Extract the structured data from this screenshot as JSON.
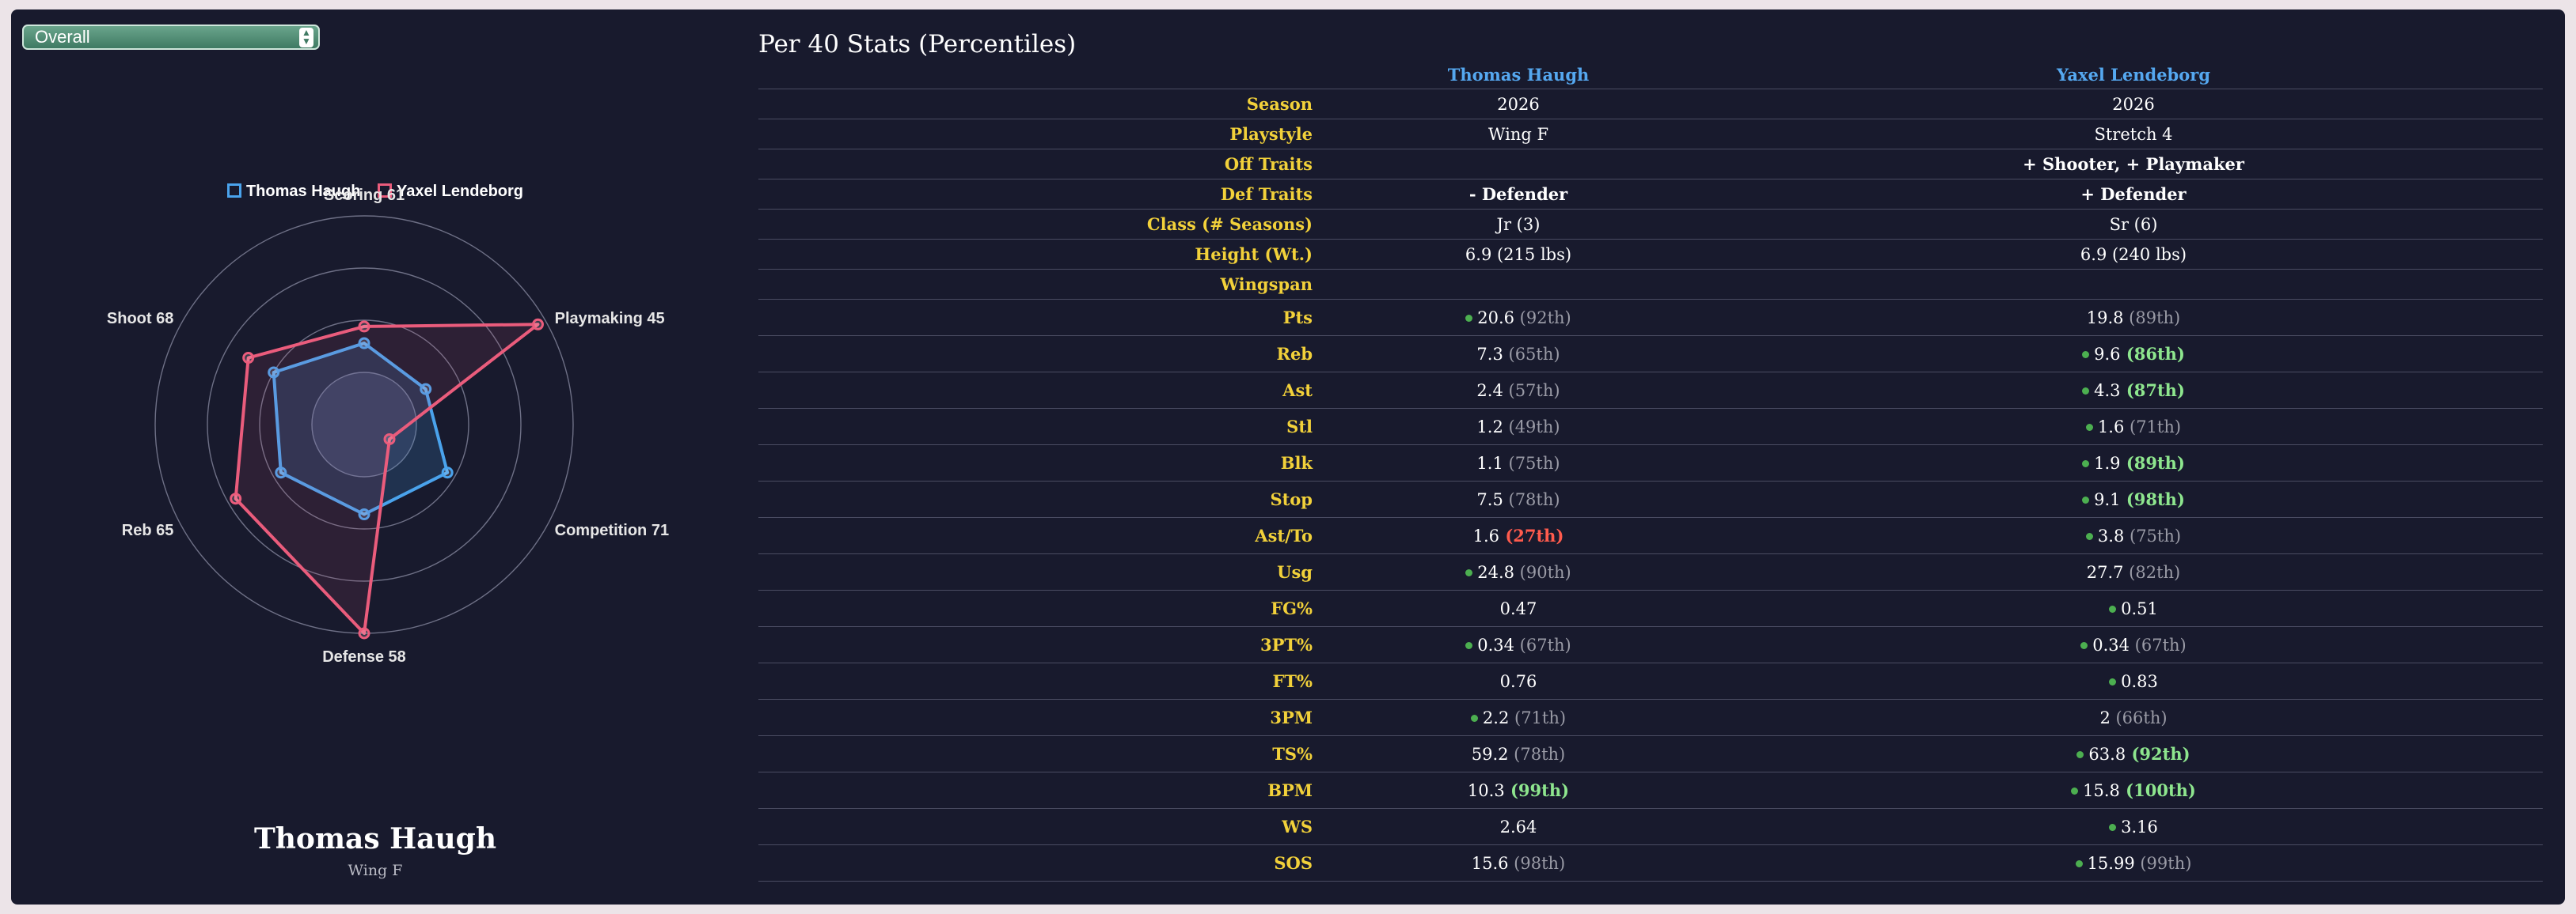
{
  "selector": {
    "value": "Overall"
  },
  "radar": {
    "legend": [
      {
        "name": "Thomas Haugh",
        "color": "#4aa3ec"
      },
      {
        "name": "Yaxel Lendeborg",
        "color": "#ea5c7c"
      }
    ],
    "axes": [
      "Scoring 61",
      "Playmaking 45",
      "Competition 71",
      "Defense 58",
      "Reb 65",
      "Shoot 68"
    ],
    "series": [
      {
        "name": "Thomas Haugh",
        "values": [
          39,
          34,
          46,
          43,
          46,
          50
        ]
      },
      {
        "name": "Yaxel Lendeborg",
        "values": [
          47,
          96,
          14,
          100,
          71,
          64
        ]
      }
    ],
    "max": 100,
    "rings": 4
  },
  "player": {
    "name": "Thomas Haugh",
    "role": "Wing F"
  },
  "stats": {
    "title": "Per 40 Stats (Percentiles)",
    "players": [
      "Thomas Haugh",
      "Yaxel Lendeborg"
    ],
    "info_rows": [
      {
        "label": "Season",
        "p1": "2026",
        "p2": "2026"
      },
      {
        "label": "Playstyle",
        "p1": "Wing F",
        "p2": "Stretch 4"
      },
      {
        "label": "Off Traits",
        "p1": "",
        "p2": "+ Shooter, + Playmaker",
        "p2_type": "good"
      },
      {
        "label": "Def Traits",
        "p1": "- Defender",
        "p1_type": "bad",
        "p2": "+ Defender",
        "p2_type": "good"
      },
      {
        "label": "Class (# Seasons)",
        "p1": "Jr (3)",
        "p2": "Sr (6)"
      },
      {
        "label": "Height (Wt.)",
        "p1": "6.9 (215 lbs)",
        "p2": "6.9 (240 lbs)"
      },
      {
        "label": "Wingspan",
        "p1": "",
        "p2": ""
      }
    ],
    "stat_rows": [
      {
        "label": "Pts",
        "p1": {
          "value": "20.6",
          "pct": "(92th)",
          "dot": true,
          "tier": "normal"
        },
        "p2": {
          "value": "19.8",
          "pct": "(89th)",
          "dot": false,
          "tier": "normal"
        }
      },
      {
        "label": "Reb",
        "p1": {
          "value": "7.3",
          "pct": "(65th)",
          "dot": false,
          "tier": "normal"
        },
        "p2": {
          "value": "9.6",
          "pct": "(86th)",
          "dot": true,
          "tier": "high"
        }
      },
      {
        "label": "Ast",
        "p1": {
          "value": "2.4",
          "pct": "(57th)",
          "dot": false,
          "tier": "normal"
        },
        "p2": {
          "value": "4.3",
          "pct": "(87th)",
          "dot": true,
          "tier": "high"
        }
      },
      {
        "label": "Stl",
        "p1": {
          "value": "1.2",
          "pct": "(49th)",
          "dot": false,
          "tier": "normal"
        },
        "p2": {
          "value": "1.6",
          "pct": "(71th)",
          "dot": true,
          "tier": "normal"
        }
      },
      {
        "label": "Blk",
        "p1": {
          "value": "1.1",
          "pct": "(75th)",
          "dot": false,
          "tier": "normal"
        },
        "p2": {
          "value": "1.9",
          "pct": "(89th)",
          "dot": true,
          "tier": "high"
        }
      },
      {
        "label": "Stop",
        "p1": {
          "value": "7.5",
          "pct": "(78th)",
          "dot": false,
          "tier": "normal"
        },
        "p2": {
          "value": "9.1",
          "pct": "(98th)",
          "dot": true,
          "tier": "high"
        }
      },
      {
        "label": "Ast/To",
        "p1": {
          "value": "1.6",
          "pct": "(27th)",
          "dot": false,
          "tier": "low"
        },
        "p2": {
          "value": "3.8",
          "pct": "(75th)",
          "dot": true,
          "tier": "normal"
        }
      },
      {
        "label": "Usg",
        "p1": {
          "value": "24.8",
          "pct": "(90th)",
          "dot": true,
          "tier": "normal"
        },
        "p2": {
          "value": "27.7",
          "pct": "(82th)",
          "dot": false,
          "tier": "normal"
        }
      },
      {
        "label": "FG%",
        "p1": {
          "value": "0.47",
          "pct": "",
          "dot": false,
          "tier": "normal"
        },
        "p2": {
          "value": "0.51",
          "pct": "",
          "dot": true,
          "tier": "normal"
        }
      },
      {
        "label": "3PT%",
        "p1": {
          "value": "0.34",
          "pct": "(67th)",
          "dot": true,
          "tier": "normal"
        },
        "p2": {
          "value": "0.34",
          "pct": "(67th)",
          "dot": true,
          "tier": "normal"
        }
      },
      {
        "label": "FT%",
        "p1": {
          "value": "0.76",
          "pct": "",
          "dot": false,
          "tier": "normal"
        },
        "p2": {
          "value": "0.83",
          "pct": "",
          "dot": true,
          "tier": "normal"
        }
      },
      {
        "label": "3PM",
        "p1": {
          "value": "2.2",
          "pct": "(71th)",
          "dot": true,
          "tier": "normal"
        },
        "p2": {
          "value": "2",
          "pct": "(66th)",
          "dot": false,
          "tier": "normal"
        }
      },
      {
        "label": "TS%",
        "p1": {
          "value": "59.2",
          "pct": "(78th)",
          "dot": false,
          "tier": "normal"
        },
        "p2": {
          "value": "63.8",
          "pct": "(92th)",
          "dot": true,
          "tier": "high"
        }
      },
      {
        "label": "BPM",
        "p1": {
          "value": "10.3",
          "pct": "(99th)",
          "dot": false,
          "tier": "high"
        },
        "p2": {
          "value": "15.8",
          "pct": "(100th)",
          "dot": true,
          "tier": "high"
        }
      },
      {
        "label": "WS",
        "p1": {
          "value": "2.64",
          "pct": "",
          "dot": false,
          "tier": "normal"
        },
        "p2": {
          "value": "3.16",
          "pct": "",
          "dot": true,
          "tier": "normal"
        }
      },
      {
        "label": "SOS",
        "p1": {
          "value": "15.6",
          "pct": "(98th)",
          "dot": false,
          "tier": "normal"
        },
        "p2": {
          "value": "15.99",
          "pct": "(99th)",
          "dot": true,
          "tier": "normal"
        }
      }
    ]
  }
}
